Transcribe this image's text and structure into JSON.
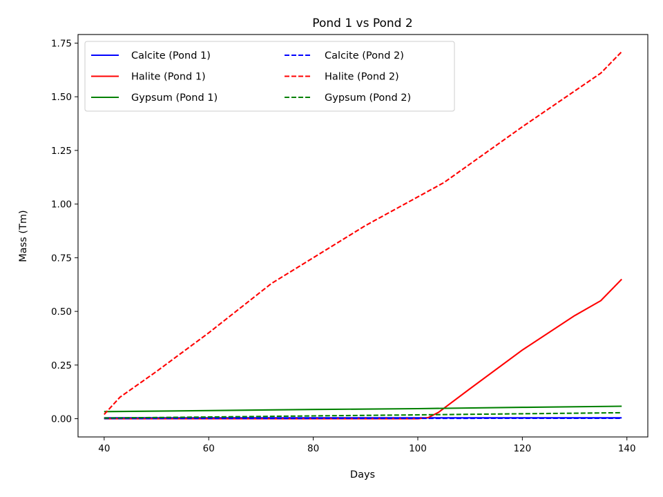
{
  "chart_data": {
    "type": "line",
    "title": "Pond 1 vs Pond 2",
    "xlabel": "Days",
    "ylabel": "Mass (Tm)",
    "xlim": [
      35,
      144
    ],
    "ylim": [
      -0.085,
      1.79
    ],
    "xticks": [
      40,
      60,
      80,
      100,
      120,
      140
    ],
    "xtick_labels": [
      "40",
      "60",
      "80",
      "100",
      "120",
      "140"
    ],
    "yticks": [
      0,
      0.25,
      0.5,
      0.75,
      1.0,
      1.25,
      1.5,
      1.75
    ],
    "ytick_labels": [
      "0.00",
      "0.25",
      "0.50",
      "0.75",
      "1.00",
      "1.25",
      "1.50",
      "1.75"
    ],
    "grid": false,
    "legend": {
      "location": "upper left",
      "columns": 2
    },
    "series": [
      {
        "name": "Calcite (Pond 1)",
        "color": "#0000ff",
        "style": "solid",
        "x": [
          40,
          139
        ],
        "y": [
          0.004,
          0.004
        ]
      },
      {
        "name": "Halite (Pond 1)",
        "color": "#ff0000",
        "style": "solid",
        "x": [
          40,
          60,
          80,
          100,
          102,
          104,
          110,
          120,
          130,
          135,
          139
        ],
        "y": [
          0.0,
          0.0,
          0.0,
          0.0,
          0.005,
          0.03,
          0.14,
          0.32,
          0.48,
          0.55,
          0.65
        ]
      },
      {
        "name": "Gypsum (Pond 1)",
        "color": "#008000",
        "style": "solid",
        "x": [
          40,
          60,
          80,
          100,
          120,
          139
        ],
        "y": [
          0.033,
          0.038,
          0.043,
          0.047,
          0.053,
          0.058
        ]
      },
      {
        "name": "Calcite (Pond 2)",
        "color": "#0000ff",
        "style": "dashed",
        "x": [
          40,
          139
        ],
        "y": [
          0.001,
          0.002
        ]
      },
      {
        "name": "Halite (Pond 2)",
        "color": "#ff0000",
        "style": "dashed",
        "x": [
          40,
          43,
          50,
          60,
          72,
          80,
          90,
          105,
          120,
          135,
          139
        ],
        "y": [
          0.02,
          0.1,
          0.22,
          0.4,
          0.63,
          0.75,
          0.9,
          1.1,
          1.36,
          1.61,
          1.71
        ]
      },
      {
        "name": "Gypsum (Pond 2)",
        "color": "#008000",
        "style": "dashed",
        "x": [
          40,
          60,
          80,
          100,
          120,
          139
        ],
        "y": [
          0.003,
          0.008,
          0.013,
          0.018,
          0.023,
          0.028
        ]
      }
    ]
  }
}
